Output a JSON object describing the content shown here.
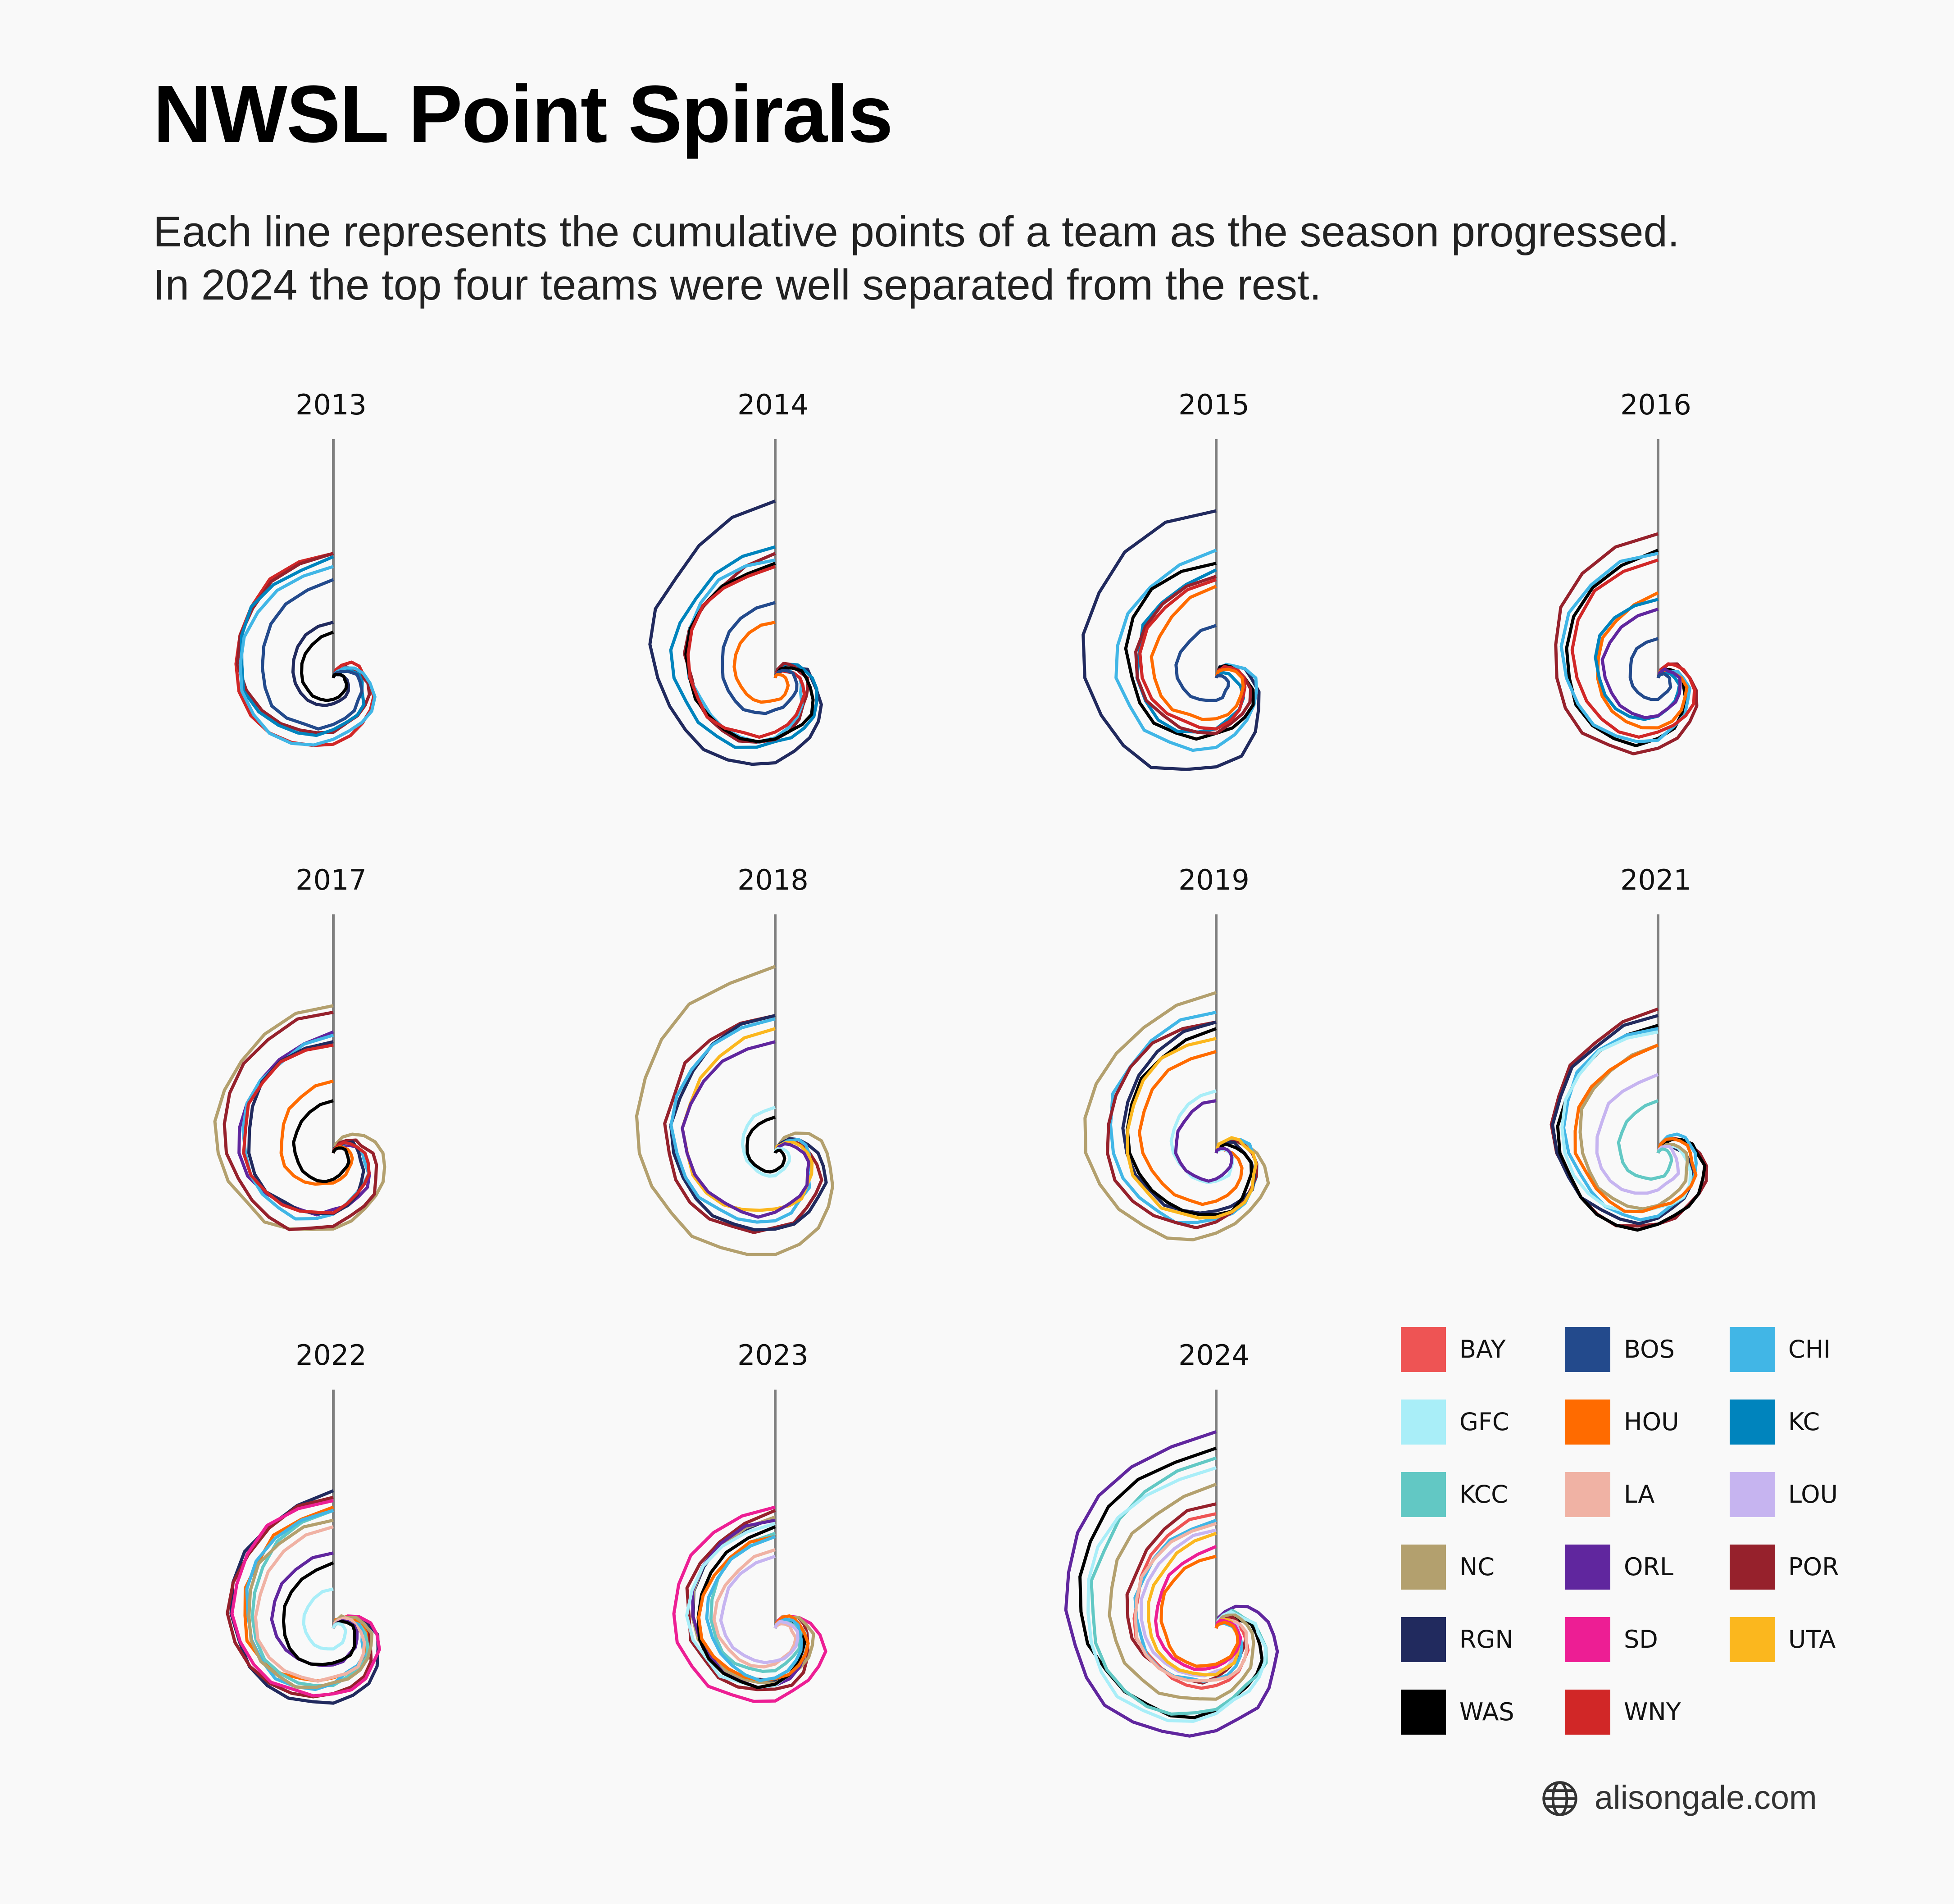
{
  "title": "NWSL Point Spirals",
  "subtitle_line1": "Each line represents the cumulative points of a team as the season progressed.",
  "subtitle_line2": "In 2024 the top four teams were well separated from the rest.",
  "credit": "alisongale.com",
  "credit_icon": "globe-icon",
  "teams": [
    {
      "code": "BAY",
      "color": "#EE5454"
    },
    {
      "code": "BOS",
      "color": "#234A8C"
    },
    {
      "code": "CHI",
      "color": "#41B6E6"
    },
    {
      "code": "GFC",
      "color": "#A9EEF8"
    },
    {
      "code": "HOU",
      "color": "#FF6B00"
    },
    {
      "code": "KC",
      "color": "#0084BD"
    },
    {
      "code": "KCC",
      "color": "#62C8C4"
    },
    {
      "code": "LA",
      "color": "#F0B2A4"
    },
    {
      "code": "LOU",
      "color": "#C6B4F0"
    },
    {
      "code": "NC",
      "color": "#B3A06E"
    },
    {
      "code": "ORL",
      "color": "#60269E"
    },
    {
      "code": "POR",
      "color": "#96212C"
    },
    {
      "code": "RGN",
      "color": "#212A5E"
    },
    {
      "code": "SD",
      "color": "#ED1E94"
    },
    {
      "code": "UTA",
      "color": "#FBB71E"
    },
    {
      "code": "WAS",
      "color": "#000000"
    },
    {
      "code": "WNY",
      "color": "#D12727"
    }
  ],
  "chart_data": {
    "type": "line",
    "note_encoding": "polar spiral: angle = match number, radius = cumulative points",
    "max_points": 66,
    "panels": [
      {
        "season": "2013",
        "games": 22,
        "series": [
          {
            "team": "WNY",
            "points": 38
          },
          {
            "team": "KC",
            "points": 37
          },
          {
            "team": "POR",
            "points": 38
          },
          {
            "team": "CHI",
            "points": 34
          },
          {
            "team": "BOS",
            "points": 30
          },
          {
            "team": "RGN",
            "points": 17
          },
          {
            "team": "WAS",
            "points": 14
          }
        ]
      },
      {
        "season": "2014",
        "games": 24,
        "series": [
          {
            "team": "RGN",
            "points": 54
          },
          {
            "team": "KC",
            "points": 40
          },
          {
            "team": "POR",
            "points": 38
          },
          {
            "team": "CHI",
            "points": 36
          },
          {
            "team": "WAS",
            "points": 35
          },
          {
            "team": "WNY",
            "points": 34
          },
          {
            "team": "BOS",
            "points": 23
          },
          {
            "team": "HOU",
            "points": 17
          }
        ]
      },
      {
        "season": "2015",
        "games": 20,
        "series": [
          {
            "team": "RGN",
            "points": 51
          },
          {
            "team": "CHI",
            "points": 39
          },
          {
            "team": "WAS",
            "points": 35
          },
          {
            "team": "KC",
            "points": 33
          },
          {
            "team": "POR",
            "points": 31
          },
          {
            "team": "WNY",
            "points": 30
          },
          {
            "team": "HOU",
            "points": 28
          },
          {
            "team": "BOS",
            "points": 16
          }
        ]
      },
      {
        "season": "2016",
        "games": 20,
        "series": [
          {
            "team": "POR",
            "points": 44
          },
          {
            "team": "WAS",
            "points": 39
          },
          {
            "team": "CHI",
            "points": 38
          },
          {
            "team": "WNY",
            "points": 36
          },
          {
            "team": "HOU",
            "points": 26
          },
          {
            "team": "KC",
            "points": 24
          },
          {
            "team": "ORL",
            "points": 21
          },
          {
            "team": "BOS",
            "points": 12
          }
        ]
      },
      {
        "season": "2017",
        "games": 24,
        "series": [
          {
            "team": "NC",
            "points": 45
          },
          {
            "team": "POR",
            "points": 43
          },
          {
            "team": "ORL",
            "points": 37
          },
          {
            "team": "CHI",
            "points": 36
          },
          {
            "team": "RGN",
            "points": 34
          },
          {
            "team": "WNY",
            "points": 33
          },
          {
            "team": "HOU",
            "points": 22
          },
          {
            "team": "WAS",
            "points": 16
          }
        ]
      },
      {
        "season": "2018",
        "games": 24,
        "series": [
          {
            "team": "NC",
            "points": 57
          },
          {
            "team": "POR",
            "points": 42
          },
          {
            "team": "RGN",
            "points": 42
          },
          {
            "team": "CHI",
            "points": 41
          },
          {
            "team": "UTA",
            "points": 38
          },
          {
            "team": "ORL",
            "points": 34
          },
          {
            "team": "GFC",
            "points": 14
          },
          {
            "team": "WAS",
            "points": 11
          }
        ]
      },
      {
        "season": "2019",
        "games": 24,
        "series": [
          {
            "team": "NC",
            "points": 49
          },
          {
            "team": "CHI",
            "points": 43
          },
          {
            "team": "POR",
            "points": 40
          },
          {
            "team": "RGN",
            "points": 40
          },
          {
            "team": "WAS",
            "points": 38
          },
          {
            "team": "UTA",
            "points": 35
          },
          {
            "team": "HOU",
            "points": 31
          },
          {
            "team": "GFC",
            "points": 19
          },
          {
            "team": "ORL",
            "points": 16
          }
        ]
      },
      {
        "season": "2021",
        "games": 24,
        "series": [
          {
            "team": "POR",
            "points": 44
          },
          {
            "team": "RGN",
            "points": 42
          },
          {
            "team": "WAS",
            "points": 39
          },
          {
            "team": "CHI",
            "points": 38
          },
          {
            "team": "GFC",
            "points": 37
          },
          {
            "team": "NC",
            "points": 33
          },
          {
            "team": "HOU",
            "points": 33
          },
          {
            "team": "LOU",
            "points": 24
          },
          {
            "team": "KCC",
            "points": 16
          }
        ]
      },
      {
        "season": "2022",
        "games": 22,
        "series": [
          {
            "team": "RGN",
            "points": 42
          },
          {
            "team": "POR",
            "points": 40
          },
          {
            "team": "SD",
            "points": 39
          },
          {
            "team": "HOU",
            "points": 37
          },
          {
            "team": "KCC",
            "points": 36
          },
          {
            "team": "CHI",
            "points": 36
          },
          {
            "team": "NC",
            "points": 33
          },
          {
            "team": "LA",
            "points": 31
          },
          {
            "team": "ORL",
            "points": 23
          },
          {
            "team": "WAS",
            "points": 20
          },
          {
            "team": "GFC",
            "points": 12
          }
        ]
      },
      {
        "season": "2023",
        "games": 22,
        "series": [
          {
            "team": "SD",
            "points": 37
          },
          {
            "team": "POR",
            "points": 36
          },
          {
            "team": "RGN",
            "points": 34
          },
          {
            "team": "NC",
            "points": 34
          },
          {
            "team": "ORL",
            "points": 33
          },
          {
            "team": "GFC",
            "points": 32
          },
          {
            "team": "WAS",
            "points": 31
          },
          {
            "team": "KCC",
            "points": 29
          },
          {
            "team": "HOU",
            "points": 28
          },
          {
            "team": "CHI",
            "points": 28
          },
          {
            "team": "LA",
            "points": 24
          },
          {
            "team": "LOU",
            "points": 22
          }
        ]
      },
      {
        "season": "2024",
        "games": 26,
        "series": [
          {
            "team": "ORL",
            "points": 60
          },
          {
            "team": "WAS",
            "points": 55
          },
          {
            "team": "KCC",
            "points": 52
          },
          {
            "team": "GFC",
            "points": 49
          },
          {
            "team": "NC",
            "points": 44
          },
          {
            "team": "POR",
            "points": 38
          },
          {
            "team": "BAY",
            "points": 35
          },
          {
            "team": "CHI",
            "points": 33
          },
          {
            "team": "LA",
            "points": 32
          },
          {
            "team": "LOU",
            "points": 30
          },
          {
            "team": "UTA",
            "points": 29
          },
          {
            "team": "SD",
            "points": 25
          },
          {
            "team": "HOU",
            "points": 22
          }
        ]
      }
    ]
  }
}
